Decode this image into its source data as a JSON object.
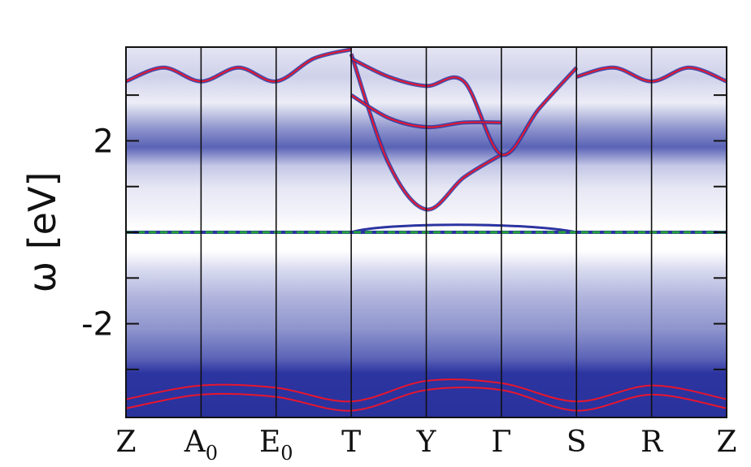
{
  "chart_data": {
    "type": "heatmap",
    "title": "",
    "xlabel": "",
    "ylabel": "ω [eV]",
    "ylim": [
      -4.05,
      4.05
    ],
    "yticks": [
      {
        "value": 2,
        "label": "2"
      },
      {
        "value": -2,
        "label": "-2"
      }
    ],
    "path_points": [
      {
        "label": "Z",
        "sub": "",
        "x": 0.0
      },
      {
        "label": "A",
        "sub": "0",
        "x": 1.0
      },
      {
        "label": "E",
        "sub": "0",
        "x": 2.0
      },
      {
        "label": "T",
        "sub": "",
        "x": 3.0
      },
      {
        "label": "Y",
        "sub": "",
        "x": 4.0
      },
      {
        "label": "Γ",
        "sub": "",
        "x": 5.0
      },
      {
        "label": "S",
        "sub": "",
        "x": 6.0
      },
      {
        "label": "R",
        "sub": "",
        "x": 7.0
      },
      {
        "label": "Z",
        "sub": "",
        "x": 8.0
      }
    ],
    "fermi_level": 0.0,
    "colors": {
      "background": "#ffffff",
      "spectral_weight": "#2c34a0",
      "quasiparticle_band": "#e8162d",
      "fermi_line": "#26a33a"
    },
    "bands": [
      {
        "x": [
          3.0,
          3.5,
          4.0,
          4.5,
          5.0
        ],
        "y": [
          3.9,
          1.5,
          0.5,
          1.2,
          1.7
        ]
      },
      {
        "x": [
          3.0,
          3.5,
          4.0,
          4.5,
          5.0,
          5.5,
          6.0
        ],
        "y": [
          3.8,
          3.4,
          3.2,
          3.3,
          1.7,
          2.7,
          3.6
        ]
      },
      {
        "x": [
          3.0,
          3.5,
          4.0,
          4.5,
          5.0
        ],
        "y": [
          3.0,
          2.5,
          2.3,
          2.4,
          2.4
        ]
      },
      {
        "x": [
          0.0,
          0.5,
          1.0,
          1.5,
          2.0,
          2.5,
          3.0
        ],
        "y": [
          3.3,
          3.6,
          3.3,
          3.6,
          3.3,
          3.8,
          4.0
        ]
      },
      {
        "x": [
          6.0,
          6.5,
          7.0,
          7.5,
          8.0
        ],
        "y": [
          3.4,
          3.6,
          3.3,
          3.6,
          3.3
        ]
      },
      {
        "x": [
          0.0,
          1.0,
          2.0,
          3.0,
          4.0,
          5.0,
          6.0,
          7.0,
          8.0
        ],
        "y": [
          -3.65,
          -3.35,
          -3.4,
          -3.7,
          -3.25,
          -3.3,
          -3.7,
          -3.35,
          -3.65
        ]
      },
      {
        "x": [
          0.0,
          1.0,
          2.0,
          3.0,
          4.0,
          5.0,
          6.0,
          7.0,
          8.0
        ],
        "y": [
          -3.85,
          -3.55,
          -3.6,
          -3.9,
          -3.45,
          -3.45,
          -3.9,
          -3.55,
          -3.85
        ]
      }
    ],
    "flat_band": {
      "x_start": 3.0,
      "x_end": 6.0,
      "y_peak": 0.22
    }
  }
}
